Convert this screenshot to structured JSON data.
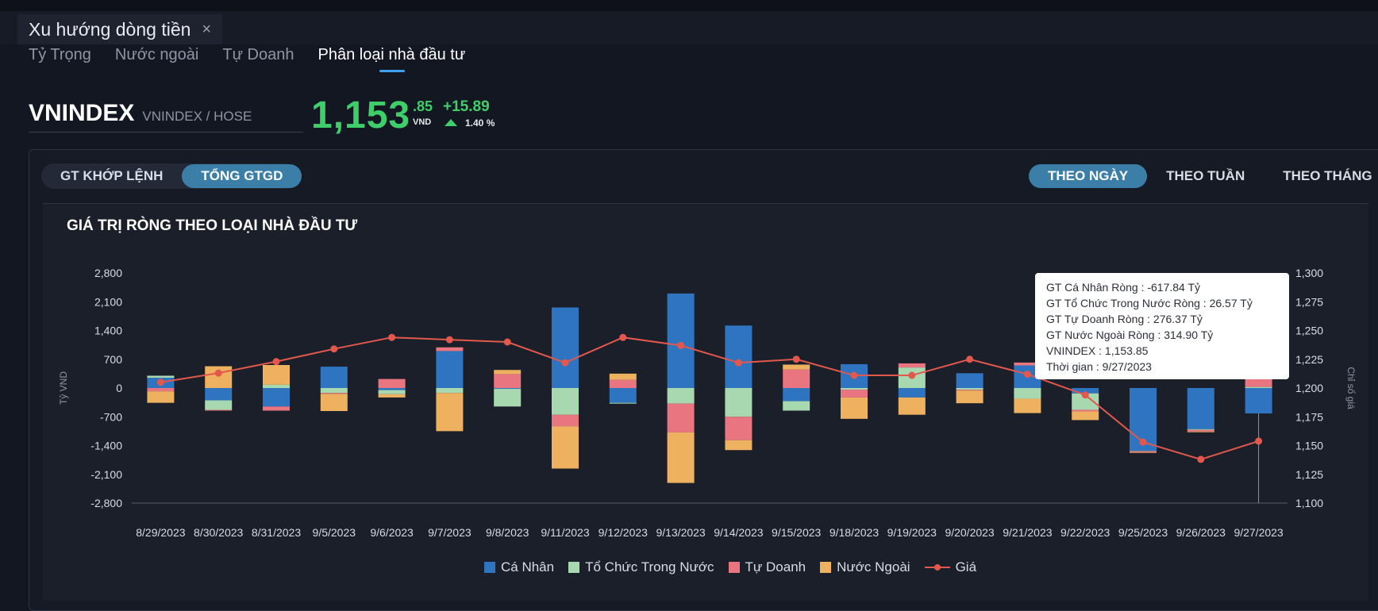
{
  "window": {
    "tab_title": "Xu hướng dòng tiền",
    "close_glyph": "×"
  },
  "subtabs": [
    "Tỷ Trọng",
    "Nước ngoài",
    "Tự Doanh",
    "Phân loại nhà đầu tư"
  ],
  "active_subtab": "Phân loại nhà đầu tư",
  "symbol": {
    "code": "VNINDEX",
    "exchange": "VNINDEX / HOSE"
  },
  "price": {
    "main": "1,153",
    "decimal": ".85",
    "unit": "VND",
    "change": "+15.89",
    "pct": "1.40 %",
    "color": "#3ecf6a"
  },
  "value_toggle": {
    "options": [
      "GT KHỚP LỆNH",
      "TỔNG GTGD"
    ],
    "selected": "TỔNG GTGD"
  },
  "period_toggle": {
    "options": [
      "THEO NGÀY",
      "THEO TUẦN",
      "THEO THÁNG"
    ],
    "selected": "THEO NGÀY"
  },
  "chart_title": "GIÁ TRỊ RÒNG THEO LOẠI NHÀ ĐẦU TƯ",
  "tooltip": {
    "lines": [
      "GT Cá Nhân Ròng  : -617.84 Tỷ",
      "GT Tổ Chức Trong Nước Ròng : 26.57 Tỷ",
      "GT Tự Doanh Ròng : 276.37 Tỷ",
      "GT Nước Ngoài Ròng : 314.90 Tỷ",
      "VNINDEX : 1,153.85",
      "Thời gian : 9/27/2023"
    ]
  },
  "chart_data": {
    "type": "bar",
    "stacked": true,
    "categories": [
      "8/29/2023",
      "8/30/2023",
      "8/31/2023",
      "9/5/2023",
      "9/6/2023",
      "9/7/2023",
      "9/8/2023",
      "9/11/2023",
      "9/12/2023",
      "9/13/2023",
      "9/14/2023",
      "9/15/2023",
      "9/18/2023",
      "9/19/2023",
      "9/20/2023",
      "9/21/2023",
      "9/22/2023",
      "9/25/2023",
      "9/26/2023",
      "9/27/2023"
    ],
    "series": [
      {
        "name": "Cá Nhân",
        "color": "#2f74c0",
        "values": [
          250,
          -300,
          -450,
          520,
          -50,
          900,
          -20,
          1960,
          -360,
          2300,
          1520,
          -320,
          580,
          -230,
          360,
          550,
          -130,
          -1530,
          -1000,
          -617.84
        ]
      },
      {
        "name": "Tổ Chức Trong Nước",
        "color": "#a8d8b0",
        "values": [
          50,
          -230,
          80,
          -120,
          -100,
          -120,
          -430,
          -650,
          -20,
          -380,
          -700,
          -230,
          -40,
          500,
          -40,
          -260,
          -400,
          -10,
          -20,
          26.57
        ]
      },
      {
        "name": "Tự Doanh",
        "color": "#e8757f",
        "values": [
          -80,
          -20,
          -100,
          -20,
          220,
          90,
          340,
          -280,
          200,
          -700,
          -570,
          450,
          -190,
          100,
          -20,
          70,
          -40,
          -30,
          -40,
          276.37
        ]
      },
      {
        "name": "Nước Ngoài",
        "color": "#edb160",
        "values": [
          -280,
          530,
          480,
          -420,
          -80,
          -930,
          100,
          -1030,
          150,
          -1230,
          -240,
          120,
          -520,
          -420,
          -310,
          -350,
          -210,
          -10,
          -15,
          314.9
        ]
      }
    ],
    "line": {
      "name": "Giá",
      "color": "#e2584c",
      "values": [
        1205,
        1213,
        1223,
        1234,
        1244,
        1242,
        1240,
        1222,
        1244,
        1237,
        1222,
        1225,
        1211,
        1211,
        1225,
        1212,
        1194,
        1153,
        1138,
        1153.85
      ]
    },
    "y_left": {
      "label": "Tỷ VND",
      "ticks": [
        "2,800",
        "2,100",
        "1,400",
        "700",
        "0",
        "-700",
        "-1,400",
        "-2,100",
        "-2,800"
      ],
      "min": -2800,
      "max": 2800
    },
    "y_right": {
      "label": "Chỉ số giá",
      "ticks": [
        "1,300",
        "1,275",
        "1,250",
        "1,225",
        "1,200",
        "1,175",
        "1,150",
        "1,125",
        "1,100"
      ],
      "min": 1100,
      "max": 1300
    },
    "legend_placement": "bottom"
  }
}
